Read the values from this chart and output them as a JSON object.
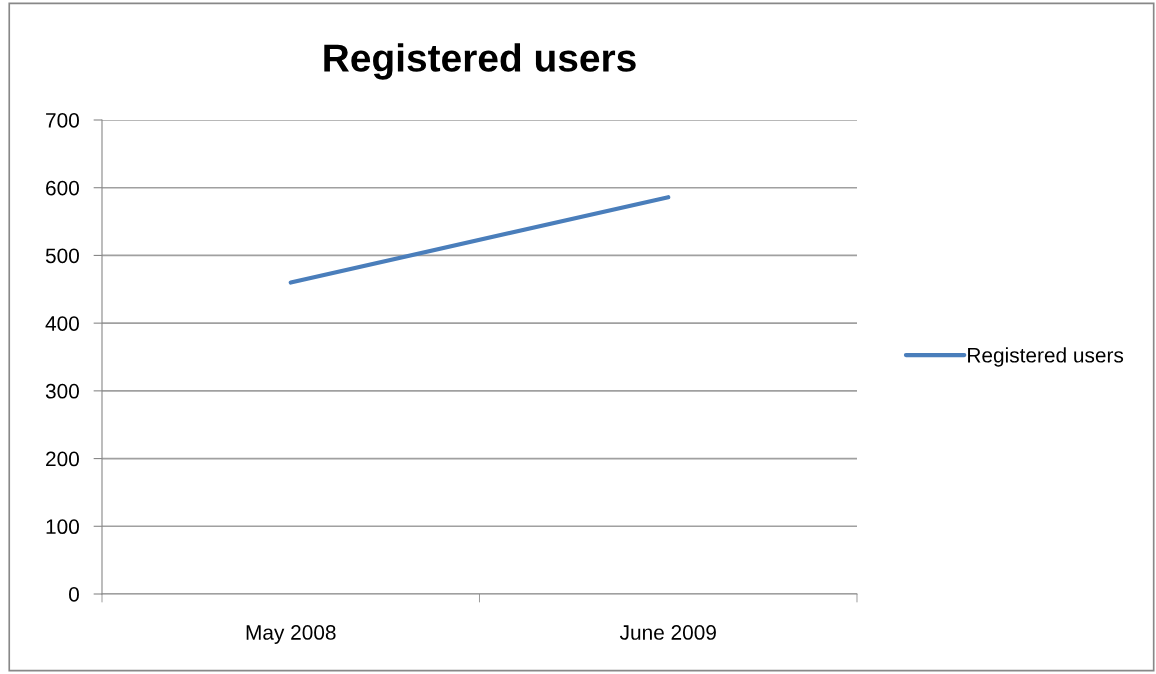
{
  "chart_data": {
    "type": "line",
    "title": "Registered users",
    "categories": [
      "May 2008",
      "June 2009"
    ],
    "series": [
      {
        "name": "Registered users",
        "color": "#4a7ebb",
        "values": [
          460,
          586
        ]
      }
    ],
    "ylim": [
      0,
      700
    ],
    "yticks": [
      0,
      100,
      200,
      300,
      400,
      500,
      600,
      700
    ],
    "grid": "y",
    "legend": "right",
    "marker": "none",
    "line_style": "solid"
  }
}
